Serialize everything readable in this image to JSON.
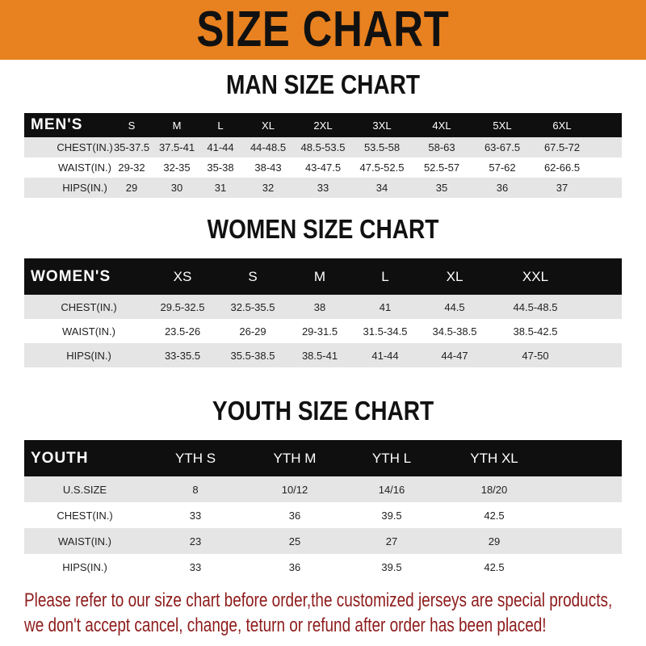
{
  "banner": {
    "title": "SIZE CHART",
    "color": "#e8811f"
  },
  "men": {
    "title": "MAN SIZE CHART",
    "header": [
      "MEN'S",
      "S",
      "M",
      "L",
      "XL",
      "2XL",
      "3XL",
      "4XL",
      "5XL",
      "6XL"
    ],
    "rows": [
      [
        "CHEST(IN.)",
        "35-37.5",
        "37.5-41",
        "41-44",
        "44-48.5",
        "48.5-53.5",
        "53.5-58",
        "58-63",
        "63-67.5",
        "67.5-72"
      ],
      [
        "WAIST(IN.)",
        "29-32",
        "32-35",
        "35-38",
        "38-43",
        "43-47.5",
        "47.5-52.5",
        "52.5-57",
        "57-62",
        "62-66.5"
      ],
      [
        "HIPS(IN.)",
        "29",
        "30",
        "31",
        "32",
        "33",
        "34",
        "35",
        "36",
        "37"
      ]
    ]
  },
  "women": {
    "title": "WOMEN SIZE CHART",
    "header": [
      "WOMEN'S",
      "XS",
      "S",
      "M",
      "L",
      "XL",
      "XXL"
    ],
    "rows": [
      [
        "CHEST(IN.)",
        "29.5-32.5",
        "32.5-35.5",
        "38",
        "41",
        "44.5",
        "44.5-48.5"
      ],
      [
        "WAIST(IN.)",
        "23.5-26",
        "26-29",
        "29-31.5",
        "31.5-34.5",
        "34.5-38.5",
        "38.5-42.5"
      ],
      [
        "HIPS(IN.)",
        "33-35.5",
        "35.5-38.5",
        "38.5-41",
        "41-44",
        "44-47",
        "47-50"
      ]
    ]
  },
  "youth": {
    "title": "YOUTH SIZE CHART",
    "header": [
      "YOUTH",
      "YTH S",
      "YTH M",
      "YTH L",
      "YTH XL"
    ],
    "rows": [
      [
        "U.S.SIZE",
        "8",
        "10/12",
        "14/16",
        "18/20"
      ],
      [
        "CHEST(IN.)",
        "33",
        "36",
        "39.5",
        "42.5"
      ],
      [
        "WAIST(IN.)",
        "23",
        "25",
        "27",
        "29"
      ],
      [
        "HIPS(IN.)",
        "33",
        "36",
        "39.5",
        "42.5"
      ]
    ]
  },
  "footer": {
    "line1": "Please refer to our size chart before order,the customized jerseys are special products,",
    "line2": "we don't accept cancel, change, teturn or refund after order has been placed!",
    "color": "#8e1b1b"
  }
}
